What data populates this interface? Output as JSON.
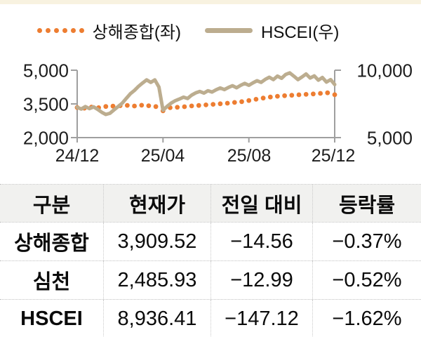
{
  "page": {
    "top_strip_color": "#f8f2e0",
    "background": "#ffffff"
  },
  "legend": [
    {
      "label": "상해종합(좌)",
      "marker": "orange-dots",
      "color": "#ed7d31"
    },
    {
      "label": "HSCEI(우)",
      "marker": "tan-line",
      "color": "#bcad8f"
    }
  ],
  "chart_data": {
    "type": "line",
    "title": "",
    "x_ticks": [
      "24/12",
      "25/04",
      "25/08",
      "25/12"
    ],
    "left_axis": {
      "label_for": "상해종합",
      "ticks": [
        "5,000",
        "3,500",
        "2,000"
      ],
      "range": [
        2000,
        5000
      ]
    },
    "right_axis": {
      "label_for": "HSCEI",
      "ticks": [
        "10,000",
        "5,000"
      ],
      "range": [
        5000,
        10000
      ]
    },
    "grid": false,
    "legend_position": "top",
    "series": [
      {
        "name": "상해종합(좌)",
        "axis": "left",
        "style": "dotted",
        "color": "#ed7d31",
        "values": [
          3340,
          3310,
          3360,
          3330,
          3385,
          3400,
          3420,
          3435,
          3405,
          3440,
          3420,
          3380,
          3190,
          3330,
          3350,
          3375,
          3410,
          3430,
          3455,
          3480,
          3505,
          3530,
          3565,
          3600,
          3650,
          3705,
          3760,
          3805,
          3840,
          3865,
          3885,
          3905,
          3925,
          3945,
          3970,
          3995,
          3910
        ]
      },
      {
        "name": "HSCEI(우)",
        "axis": "right",
        "style": "solid",
        "color": "#bcad8f",
        "values": [
          7250,
          7120,
          7300,
          7150,
          7280,
          7100,
          6880,
          6720,
          6800,
          7050,
          7300,
          7550,
          7900,
          8250,
          8500,
          8800,
          9050,
          9280,
          9100,
          9280,
          8750,
          7030,
          7320,
          7560,
          7740,
          7860,
          8000,
          7900,
          8150,
          8320,
          8420,
          8300,
          8480,
          8380,
          8550,
          8680,
          8560,
          8720,
          8850,
          8700,
          8880,
          9020,
          8880,
          9060,
          9220,
          9100,
          9320,
          9480,
          9300,
          9560,
          9400,
          9680,
          9800,
          9560,
          9300,
          9500,
          9720,
          9420,
          9580,
          9260,
          9460,
          9120,
          9300,
          8936
        ]
      }
    ]
  },
  "table": {
    "headers": [
      "구분",
      "현재가",
      "전일 대비",
      "등락률"
    ],
    "rows": [
      {
        "name": "상해종합",
        "price": "3,909.52",
        "change": "−14.56",
        "pct": "−0.37%"
      },
      {
        "name": "심천",
        "price": "2,485.93",
        "change": "−12.99",
        "pct": "−0.52%"
      },
      {
        "name": "HSCEI",
        "price": "8,936.41",
        "change": "−147.12",
        "pct": "−1.62%"
      }
    ]
  },
  "colors": {
    "shanghai_orange": "#ed7d31",
    "hscei_tan": "#bcad8f",
    "axis_gray": "#9f9f9f",
    "table_header_bg": "#f1f1ef",
    "dotted_border": "#c0c0c0"
  }
}
